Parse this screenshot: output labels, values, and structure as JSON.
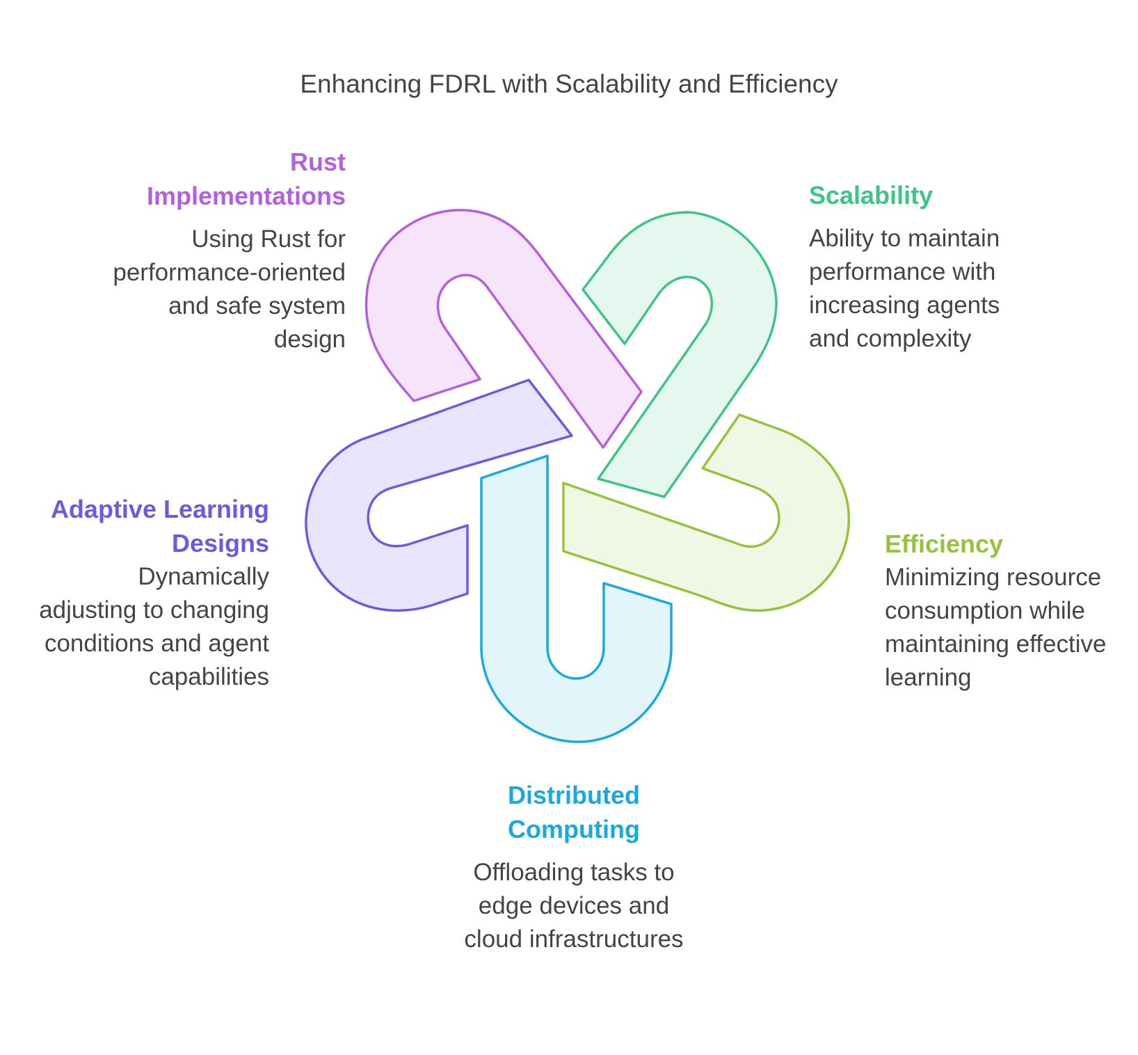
{
  "title": "Enhancing FDRL with Scalability and Efficiency",
  "items": [
    {
      "heading": "Rust Implementations",
      "description": "Using Rust for performance-oriented and safe system design",
      "color": "#b45fdf",
      "fill": "#f5e4fa"
    },
    {
      "heading": "Scalability",
      "description": "Ability to maintain performance with increasing agents and complexity",
      "color": "#3ec487",
      "fill": "#e5f8ef"
    },
    {
      "heading": "Efficiency",
      "description": "Minimizing resource consumption while maintaining effective learning",
      "color": "#97c23c",
      "fill": "#f0f8e5"
    },
    {
      "heading": "Distributed Computing",
      "description": "Offloading tasks to edge devices and cloud infrastructures",
      "color": "#1aa9df",
      "fill": "#e2f5fb"
    },
    {
      "heading": "Adaptive Learning Designs",
      "description": "Dynamically adjusting to changing conditions and agent capabilities",
      "color": "#7258e0",
      "fill": "#e8e5fc"
    }
  ]
}
